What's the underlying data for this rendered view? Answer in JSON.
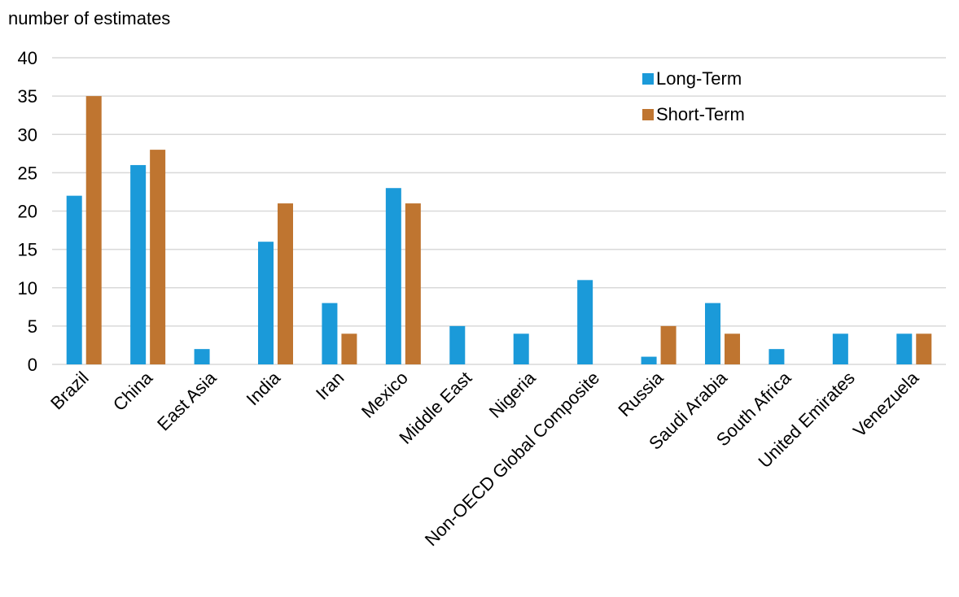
{
  "chart_data": {
    "type": "bar",
    "ylabel": "number of estimates",
    "xlabel": "",
    "ylim": [
      0,
      40
    ],
    "yticks": [
      0,
      5,
      10,
      15,
      20,
      25,
      30,
      35,
      40
    ],
    "grid": true,
    "legend_position": "top-right",
    "categories": [
      "Brazil",
      "China",
      "East Asia",
      "India",
      "Iran",
      "Mexico",
      "Middle East",
      "Nigeria",
      "Non-OECD Global Composite",
      "Russia",
      "Saudi Arabia",
      "South Africa",
      "United Emirates",
      "Venezuela"
    ],
    "series": [
      {
        "name": "Long-Term",
        "color": "#1B9AD9",
        "values": [
          22,
          26,
          2,
          16,
          8,
          23,
          5,
          4,
          11,
          1,
          8,
          2,
          4,
          4
        ]
      },
      {
        "name": "Short-Term",
        "color": "#BF7530",
        "values": [
          35,
          28,
          0,
          21,
          4,
          21,
          0,
          0,
          0,
          5,
          4,
          0,
          0,
          4
        ]
      }
    ]
  }
}
